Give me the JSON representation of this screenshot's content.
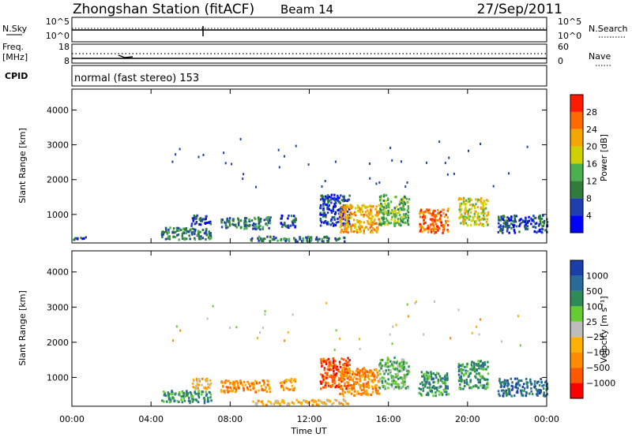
{
  "header": {
    "title": "Zhongshan Station (fitACF)",
    "beam": "Beam 14",
    "date": "27/Sep/2011"
  },
  "strip_panels": {
    "sky": {
      "left_label": "N.Sky",
      "right_label": "N.Search",
      "ticks_left": [
        "10^5",
        "10^0"
      ],
      "ticks_right": [
        "10^5",
        "10^0"
      ]
    },
    "freq": {
      "left_label_1": "Freq.",
      "left_label_2": "[MHz]",
      "ticks_left": [
        "18",
        "8"
      ],
      "ticks_right": [
        "60",
        "0"
      ],
      "right_label": "Nave"
    },
    "cpid": {
      "label": "CPID",
      "text": "normal (fast stereo) 153"
    }
  },
  "chart_data": [
    {
      "type": "heatmap",
      "panel": "power",
      "ylabel": "Slant Range [km]",
      "xlabel": "",
      "y_ticks": [
        "4000",
        "3000",
        "2000",
        "1000"
      ],
      "y_tick_values": [
        4000,
        3000,
        2000,
        1000
      ],
      "ylim": [
        180,
        4600
      ],
      "colorbar_label": "Power [dB]",
      "colorbar_ticks": [
        "28",
        "24",
        "20",
        "16",
        "12",
        "8",
        "4"
      ],
      "colorbar_tick_values": [
        28,
        24,
        20,
        16,
        12,
        8,
        4
      ],
      "colorbar_colors": [
        "#0000ff",
        "#1f3fb0",
        "#2e7d3c",
        "#4caf50",
        "#cfd200",
        "#f5a500",
        "#ff6a00",
        "#ff1a00"
      ],
      "blobs": [
        {
          "t0": 0.0,
          "t1": 1.0,
          "r0": 300,
          "r1": 380,
          "level": 1
        },
        {
          "t0": 4.5,
          "t1": 7.0,
          "r0": 300,
          "r1": 650,
          "level": 2
        },
        {
          "t0": 6.0,
          "t1": 7.0,
          "r0": 700,
          "r1": 1000,
          "level": 1
        },
        {
          "t0": 7.5,
          "t1": 10.0,
          "r0": 600,
          "r1": 950,
          "level": 2
        },
        {
          "t0": 10.5,
          "t1": 11.3,
          "r0": 650,
          "r1": 1000,
          "level": 1
        },
        {
          "t0": 12.5,
          "t1": 14.0,
          "r0": 700,
          "r1": 1600,
          "level": 1
        },
        {
          "t0": 13.5,
          "t1": 15.5,
          "r0": 500,
          "r1": 1300,
          "level": 5
        },
        {
          "t0": 15.5,
          "t1": 17.0,
          "r0": 700,
          "r1": 1600,
          "level": 3
        },
        {
          "t0": 17.5,
          "t1": 19.0,
          "r0": 500,
          "r1": 1200,
          "level": 6
        },
        {
          "t0": 19.5,
          "t1": 21.0,
          "r0": 700,
          "r1": 1500,
          "level": 4
        },
        {
          "t0": 21.5,
          "t1": 24.0,
          "r0": 500,
          "r1": 1000,
          "level": 1
        },
        {
          "t0": 9.0,
          "t1": 14.0,
          "r0": 250,
          "r1": 400,
          "level": 2
        }
      ]
    },
    {
      "type": "heatmap",
      "panel": "velocity",
      "ylabel": "Slant Range [km]",
      "xlabel": "Time UT",
      "y_ticks": [
        "4000",
        "3000",
        "2000",
        "1000"
      ],
      "y_tick_values": [
        4000,
        3000,
        2000,
        1000
      ],
      "ylim": [
        180,
        4600
      ],
      "x_ticks": [
        "00:00",
        "04:00",
        "08:00",
        "12:00",
        "16:00",
        "20:00",
        "00:00"
      ],
      "x_tick_values": [
        0,
        4,
        8,
        12,
        16,
        20,
        24
      ],
      "xlim": [
        0,
        24
      ],
      "colorbar_label": "Velocity [m s⁻¹]",
      "colorbar_ticks": [
        "1000",
        "500",
        "100",
        "25",
        "−25",
        "−100",
        "−500",
        "−1000"
      ],
      "colorbar_tick_values": [
        1000,
        500,
        100,
        25,
        -25,
        -100,
        -500,
        -1000
      ],
      "colorbar_colors": [
        "#ff0000",
        "#ff5a00",
        "#ff8c00",
        "#ffb000",
        "#bdbdbd",
        "#66cc33",
        "#2e8b57",
        "#2a6a9a",
        "#1a3fa8"
      ],
      "blobs": [
        {
          "t0": 4.5,
          "t1": 7.0,
          "r0": 300,
          "r1": 650,
          "level": 6
        },
        {
          "t0": 6.0,
          "t1": 7.0,
          "r0": 700,
          "r1": 1000,
          "level": 3
        },
        {
          "t0": 7.5,
          "t1": 10.0,
          "r0": 600,
          "r1": 950,
          "level": 2
        },
        {
          "t0": 10.5,
          "t1": 11.3,
          "r0": 650,
          "r1": 1000,
          "level": 2
        },
        {
          "t0": 12.5,
          "t1": 14.0,
          "r0": 700,
          "r1": 1600,
          "level": 1
        },
        {
          "t0": 13.5,
          "t1": 15.5,
          "r0": 500,
          "r1": 1300,
          "level": 2
        },
        {
          "t0": 15.5,
          "t1": 17.0,
          "r0": 700,
          "r1": 1600,
          "level": 5
        },
        {
          "t0": 17.5,
          "t1": 19.0,
          "r0": 500,
          "r1": 1200,
          "level": 6
        },
        {
          "t0": 19.5,
          "t1": 21.0,
          "r0": 700,
          "r1": 1500,
          "level": 6
        },
        {
          "t0": 21.5,
          "t1": 24.0,
          "r0": 500,
          "r1": 1000,
          "level": 7
        },
        {
          "t0": 9.0,
          "t1": 14.0,
          "r0": 250,
          "r1": 400,
          "level": 3
        }
      ]
    }
  ]
}
